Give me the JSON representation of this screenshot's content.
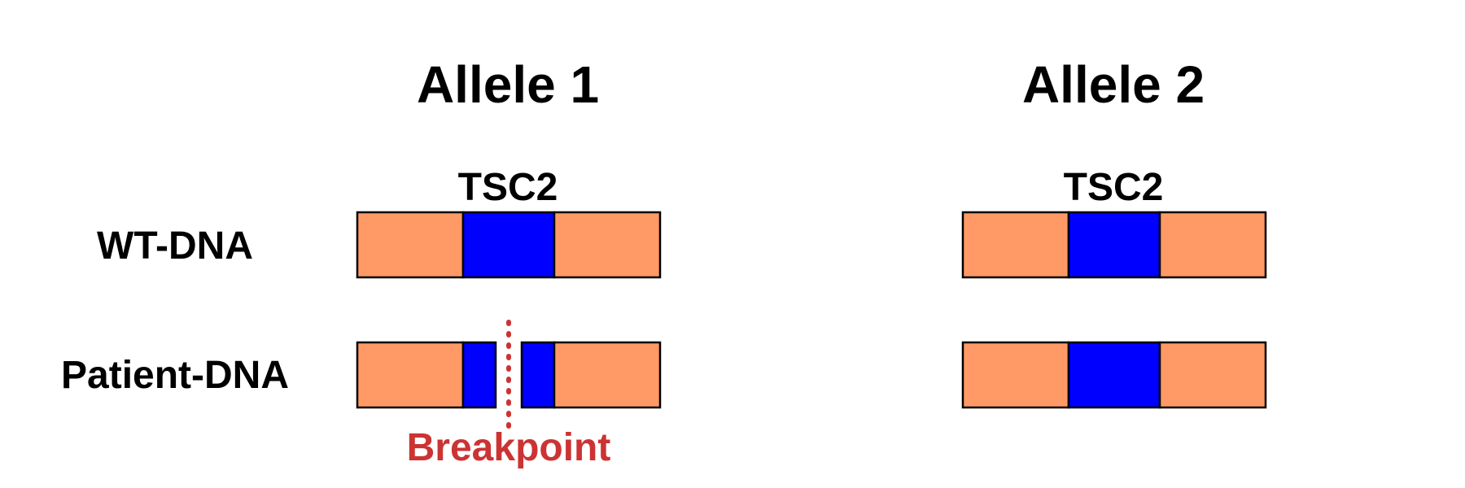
{
  "colors": {
    "flank": "#FF9966",
    "gene": "#0000FF",
    "outline": "#000000",
    "breakpoint": "#CC3333",
    "text": "#000000"
  },
  "alleles": [
    {
      "title": "Allele 1",
      "gene_label": "TSC2"
    },
    {
      "title": "Allele 2",
      "gene_label": "TSC2"
    }
  ],
  "rows": [
    {
      "label": "WT-DNA"
    },
    {
      "label": "Patient-DNA"
    }
  ],
  "breakpoint": {
    "label": "Breakpoint",
    "allele": "Allele 1",
    "row": "Patient-DNA"
  }
}
